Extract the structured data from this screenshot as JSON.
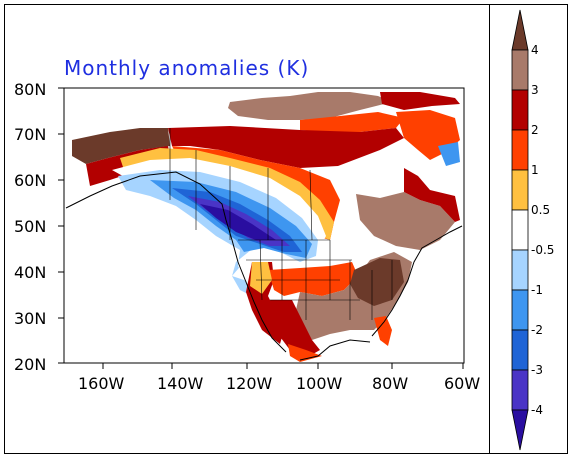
{
  "title": "Monthly anomalies (K)",
  "lat_labels": [
    "80N",
    "70N",
    "60N",
    "50N",
    "40N",
    "30N",
    "20N"
  ],
  "lon_labels": [
    "160W",
    "140W",
    "120W",
    "100W",
    "80W",
    "60W"
  ],
  "colorbar": {
    "labels": [
      "4",
      "3",
      "2",
      "1",
      "0.5",
      "-0.5",
      "-1",
      "-2",
      "-3",
      "-4"
    ],
    "colors": {
      "gt4": "#6b3a2a",
      "3_4": "#a87a6a",
      "2_3": "#b20000",
      "1_2": "#ff4000",
      "0.5_1": "#ffc040",
      "neutral": "#ffffff",
      "m1_m05": "#a6d4ff",
      "m2_m1": "#3e96f0",
      "m3_m2": "#1f64d6",
      "m4_m3": "#4a34c6",
      "lt_m4": "#2a0ea0"
    }
  }
}
